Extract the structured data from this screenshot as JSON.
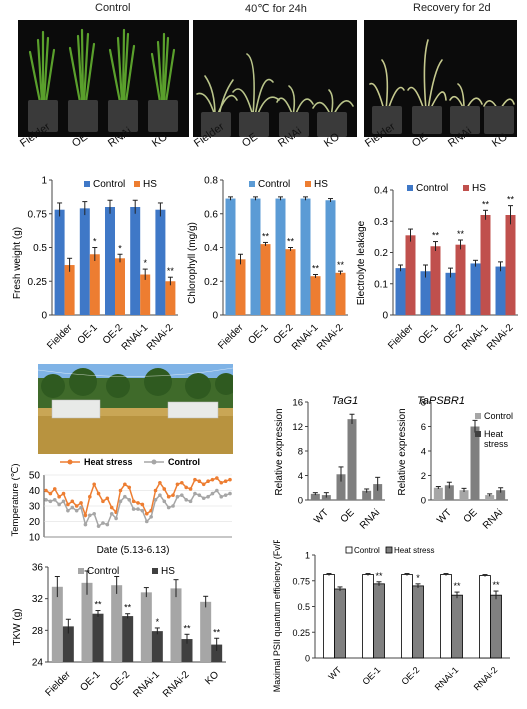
{
  "photos": {
    "titles": [
      "Control",
      "40℃ for 24h",
      "Recovery for 2d"
    ],
    "pot_labels": [
      "Fielder",
      "OE",
      "RNAi",
      "KO"
    ]
  },
  "colors": {
    "control_blue": "#3f78c7",
    "control_lightblue": "#5b9bd5",
    "hs_orange": "#ed7d31",
    "hs_red": "#c0504d",
    "grey_light": "#a6a6a6",
    "grey_dark": "#595959"
  },
  "chart_data": [
    {
      "id": "fresh-weight",
      "type": "bar",
      "ylabel": "Fresh weight (g)",
      "ylim": [
        0,
        1
      ],
      "yticks": [
        "0",
        "0.25",
        "0.5",
        "0.75",
        "1"
      ],
      "categories": [
        "Fielder",
        "OE-1",
        "OE-2",
        "RNAi-1",
        "RNAi-2"
      ],
      "legend": [
        "Control",
        "HS"
      ],
      "series": [
        {
          "name": "Control",
          "values": [
            0.78,
            0.79,
            0.8,
            0.8,
            0.78
          ],
          "errors": [
            0.05,
            0.05,
            0.05,
            0.05,
            0.05
          ],
          "sig": [
            "",
            "",
            "",
            "",
            ""
          ]
        },
        {
          "name": "HS",
          "values": [
            0.37,
            0.45,
            0.42,
            0.3,
            0.25
          ],
          "errors": [
            0.05,
            0.05,
            0.03,
            0.04,
            0.03
          ],
          "sig": [
            "",
            "*",
            "*",
            "*",
            "**"
          ]
        }
      ]
    },
    {
      "id": "chlorophyll",
      "type": "bar",
      "ylabel": "Chlorophyll (mg/g)",
      "ylim": [
        0,
        0.8
      ],
      "yticks": [
        "0",
        "0.2",
        "0.4",
        "0.6",
        "0.8"
      ],
      "categories": [
        "Fielder",
        "OE-1",
        "OE-2",
        "RNAi-1",
        "RNAi-2"
      ],
      "legend": [
        "Control",
        "HS"
      ],
      "series": [
        {
          "name": "Control",
          "values": [
            0.69,
            0.69,
            0.69,
            0.69,
            0.68
          ],
          "errors": [
            0.01,
            0.01,
            0.01,
            0.01,
            0.01
          ],
          "sig": [
            "",
            "",
            "",
            "",
            ""
          ]
        },
        {
          "name": "HS",
          "values": [
            0.33,
            0.42,
            0.39,
            0.23,
            0.25
          ],
          "errors": [
            0.03,
            0.01,
            0.01,
            0.01,
            0.01
          ],
          "sig": [
            "",
            "**",
            "**",
            "**",
            "**"
          ]
        }
      ]
    },
    {
      "id": "electrolyte",
      "type": "bar",
      "ylabel": "Electrolyte leakage",
      "ylim": [
        0,
        0.4
      ],
      "yticks": [
        "0",
        "0.1",
        "0.2",
        "0.3",
        "0.4"
      ],
      "categories": [
        "Fielder",
        "OE-1",
        "OE-2",
        "RNAi-1",
        "RNAi-2"
      ],
      "legend": [
        "Control",
        "HS"
      ],
      "series": [
        {
          "name": "Control",
          "values": [
            0.15,
            0.14,
            0.135,
            0.165,
            0.155
          ],
          "errors": [
            0.01,
            0.02,
            0.015,
            0.01,
            0.015
          ],
          "sig": [
            "",
            "",
            "",
            "",
            ""
          ]
        },
        {
          "name": "HS",
          "values": [
            0.255,
            0.22,
            0.225,
            0.32,
            0.32
          ],
          "errors": [
            0.02,
            0.015,
            0.015,
            0.015,
            0.03
          ],
          "sig": [
            "",
            "**",
            "**",
            "**",
            "**"
          ]
        }
      ]
    },
    {
      "id": "temperature",
      "type": "line",
      "ylabel": "Temperature (℃)",
      "xlabel": "Date (5.13-6.13)",
      "ylim": [
        10,
        50
      ],
      "yticks": [
        "10",
        "20",
        "30",
        "40",
        "50"
      ],
      "legend": [
        "Heat stress",
        "Control"
      ],
      "series": [
        {
          "name": "Heat stress",
          "values": [
            40,
            38,
            41,
            36,
            38,
            31,
            33,
            30,
            32,
            24,
            36,
            44,
            38,
            33,
            35,
            29,
            26,
            40,
            44,
            42,
            33,
            32,
            31,
            25,
            27,
            40,
            45,
            41,
            36,
            37,
            44,
            45,
            42,
            41,
            47,
            46,
            44,
            46,
            47,
            48,
            45,
            46,
            47
          ]
        },
        {
          "name": "Control",
          "values": [
            34,
            33,
            34,
            31,
            33,
            27,
            29,
            27,
            29,
            18,
            24,
            25,
            17,
            19,
            18,
            25,
            22,
            33,
            36,
            34,
            28,
            28,
            27,
            20,
            23,
            34,
            37,
            33,
            29,
            30,
            36,
            37,
            34,
            33,
            38,
            37,
            35,
            36,
            38,
            40,
            36,
            37,
            38
          ]
        }
      ]
    },
    {
      "id": "tkw",
      "type": "bar",
      "ylabel": "TKW (g)",
      "ylim": [
        24,
        36
      ],
      "yticks": [
        "24",
        "28",
        "32",
        "36"
      ],
      "categories": [
        "Fielder",
        "OE-1",
        "OE-2",
        "RNAi-1",
        "RNAi-2",
        "KO"
      ],
      "legend": [
        "Control",
        "HS"
      ],
      "series": [
        {
          "name": "Control",
          "values": [
            33.5,
            34.0,
            33.7,
            32.8,
            33.3,
            31.6
          ],
          "errors": [
            1.3,
            1.5,
            1.1,
            0.6,
            1.1,
            0.7
          ],
          "sig": [
            "",
            "",
            "",
            "",
            "",
            ""
          ]
        },
        {
          "name": "HS",
          "values": [
            28.5,
            30.1,
            29.8,
            27.9,
            26.9,
            26.2
          ],
          "errors": [
            0.9,
            0.4,
            0.3,
            0.4,
            0.6,
            0.8
          ],
          "sig": [
            "",
            "**",
            "**",
            "*",
            "**",
            "**"
          ]
        }
      ]
    },
    {
      "id": "tag1",
      "type": "bar",
      "title": "TaG1",
      "ylabel": "Relative expression",
      "ylim": [
        0,
        16
      ],
      "yticks": [
        "0",
        "4",
        "8",
        "12",
        "16"
      ],
      "categories": [
        "WT",
        "OE",
        "RNAi"
      ],
      "series": [
        {
          "name": "",
          "values": [
            1.0,
            4.2,
            1.5
          ],
          "errors": [
            0.2,
            1.2,
            0.3
          ]
        },
        {
          "name": "",
          "values": [
            0.8,
            13.2,
            2.6
          ],
          "errors": [
            0.4,
            0.8,
            1.1
          ]
        }
      ]
    },
    {
      "id": "tapsbr1",
      "type": "bar",
      "title": "TaPSBR1",
      "ylabel": "Relative expression",
      "ylim": [
        0,
        8
      ],
      "yticks": [
        "0",
        "2",
        "4",
        "6",
        "8"
      ],
      "categories": [
        "WT",
        "OE",
        "RNAi"
      ],
      "legend": [
        "Control",
        "Heat\nstress"
      ],
      "series": [
        {
          "name": "Control",
          "values": [
            1.0,
            0.8,
            0.4
          ],
          "errors": [
            0.1,
            0.15,
            0.1
          ]
        },
        {
          "name": "Heat stress",
          "values": [
            1.2,
            6.0,
            0.8
          ],
          "errors": [
            0.25,
            0.5,
            0.2
          ]
        }
      ]
    },
    {
      "id": "psii",
      "type": "bar",
      "ylabel": "Maximal PSII quantum efficiency (Fv/Fm)",
      "ylim": [
        0,
        1
      ],
      "yticks": [
        "0",
        "0.25",
        "0.5",
        "0.75",
        "1"
      ],
      "categories": [
        "WT",
        "OE-1",
        "OE-2",
        "RNAi-1",
        "RNAi-2"
      ],
      "legend": [
        "Control",
        "Heat stress"
      ],
      "series": [
        {
          "name": "Control",
          "values": [
            0.81,
            0.81,
            0.81,
            0.81,
            0.8
          ],
          "errors": [
            0.01,
            0.01,
            0.01,
            0.01,
            0.01
          ],
          "sig": [
            "",
            "",
            "",
            "",
            ""
          ]
        },
        {
          "name": "Heat stress",
          "values": [
            0.67,
            0.72,
            0.7,
            0.61,
            0.61
          ],
          "errors": [
            0.02,
            0.02,
            0.02,
            0.03,
            0.04
          ],
          "sig": [
            "",
            "**",
            "*",
            "**",
            "**"
          ]
        }
      ]
    }
  ]
}
